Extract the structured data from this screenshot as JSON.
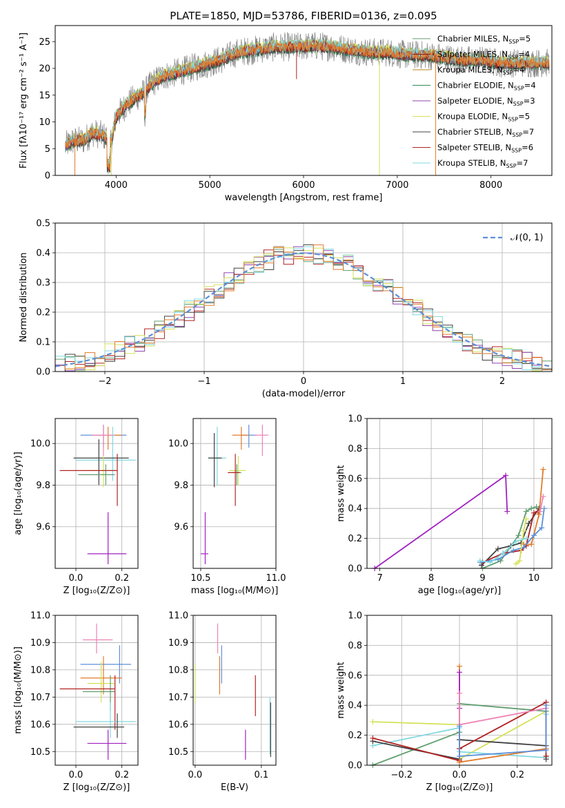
{
  "chart_data": [
    {
      "id": "spectrum",
      "type": "line",
      "title": "PLATE=1850, MJD=53786, FIBERID=0136, z=0.095",
      "xlabel": "wavelength [Angstrom, rest frame]",
      "ylabel": "Flux [fλ10⁻¹⁷ erg cm⁻² s⁻¹ A⁻¹]",
      "xlim": [
        3350,
        8650
      ],
      "ylim": [
        0,
        28
      ],
      "xticks": [
        4000,
        5000,
        6000,
        7000,
        8000
      ],
      "yticks": [
        0,
        5,
        10,
        15,
        20,
        25
      ],
      "grid": false,
      "legend_position": "top-right",
      "continuum": {
        "x": [
          3450,
          3550,
          3650,
          3750,
          3850,
          3950,
          4000,
          4100,
          4200,
          4300,
          4400,
          4500,
          4700,
          4900,
          5100,
          5300,
          5500,
          5700,
          5900,
          6100,
          6300,
          6500,
          6700,
          6900,
          7100,
          7300,
          7500,
          7700,
          7900,
          8100,
          8300
        ],
        "y": [
          5.5,
          6.5,
          6.5,
          8,
          7.5,
          6.5,
          11,
          13,
          14.5,
          15.5,
          17.5,
          18.5,
          19.5,
          20.5,
          21.5,
          23,
          23.5,
          24,
          24,
          24.2,
          24,
          23.5,
          23,
          23,
          22.5,
          22.5,
          22,
          21.5,
          21.5,
          21,
          21
        ]
      },
      "series": [
        {
          "name": "Chabrier MILES, N_SSP=5",
          "color": "#5f9e6e"
        },
        {
          "name": "Salpeter MILES, N_SSP=4",
          "color": "#8b1a1a"
        },
        {
          "name": "Kroupa MILES, N_SSP=4",
          "color": "#b8860b"
        },
        {
          "name": "Chabrier ELODIE, N_SSP=4",
          "color": "#2e8b57"
        },
        {
          "name": "Salpeter ELODIE, N_SSP=3",
          "color": "#8e44ad"
        },
        {
          "name": "Kroupa ELODIE, N_SSP=5",
          "color": "#d4e157"
        },
        {
          "name": "Chabrier STELIB, N_SSP=7",
          "color": "#404040"
        },
        {
          "name": "Salpeter STELIB, N_SSP=6",
          "color": "#b22222"
        },
        {
          "name": "Kroupa STELIB, N_SSP=7",
          "color": "#80d8e0"
        }
      ],
      "data_color": "#808080",
      "orange_color": "#e07b2a",
      "legend_labels": [
        "Chabrier MILES, N",
        "Salpeter MILES, N",
        "Kroupa MILES, N",
        "Chabrier ELODIE, N",
        "Salpeter ELODIE, N",
        "Kroupa ELODIE, N",
        "Chabrier STELIB, N",
        "Salpeter STELIB, N",
        "Kroupa STELIB, N"
      ],
      "legend_sub": "SSP",
      "legend_counts": [
        "=5",
        "=4",
        "=4",
        "=4",
        "=3",
        "=5",
        "=7",
        "=6",
        "=7"
      ]
    },
    {
      "id": "residuals",
      "type": "histogram",
      "xlabel": "(data-model)/error",
      "ylabel": "Normed distribution",
      "xlim": [
        -2.5,
        2.5
      ],
      "ylim": [
        0,
        0.5
      ],
      "xticks": [
        -2,
        -1,
        0,
        1,
        2
      ],
      "xtick_labels": [
        "−2",
        "−1",
        "0",
        "1",
        "2"
      ],
      "yticks": [
        0.0,
        0.1,
        0.2,
        0.3,
        0.4,
        0.5
      ],
      "ytick_labels": [
        "0.0",
        "0.1",
        "0.2",
        "0.3",
        "0.4",
        "0.5"
      ],
      "grid": true,
      "legend_position": "top-right",
      "legend_label": "𝒩(0, 1)",
      "reference_curve": {
        "mean": 0,
        "sigma": 1,
        "color": "#5b8fd9",
        "style": "dashed"
      },
      "bin_width": 0.1,
      "series_colors": [
        "#5f9e6e",
        "#8e44ad",
        "#b22222",
        "#d4e157",
        "#404040",
        "#80d8e0",
        "#e07b2a"
      ]
    },
    {
      "id": "age_vs_Z",
      "type": "errorbar",
      "xlabel": "Z [log₁₀(Z/Z⊙)]",
      "ylabel": "age  [log₁₀(age/yr)]",
      "xlim": [
        -0.09,
        0.27
      ],
      "ylim": [
        9.4,
        10.12
      ],
      "xticks": [
        0.0,
        0.2
      ],
      "xtick_labels": [
        "0.0",
        "0.2"
      ],
      "yticks": [
        9.6,
        9.8,
        10.0
      ],
      "ytick_labels": [
        "9.6",
        "9.8",
        "10.0"
      ],
      "grid": true,
      "points": [
        {
          "x": 0.12,
          "xlo": 0.02,
          "xhi": 0.22,
          "y": 10.04,
          "ylo": 9.98,
          "yhi": 10.09,
          "color": "#5b8fd9"
        },
        {
          "x": 0.14,
          "xlo": 0.08,
          "xhi": 0.2,
          "y": 10.04,
          "ylo": 9.97,
          "yhi": 10.08,
          "color": "#e07b2a"
        },
        {
          "x": 0.12,
          "xlo": 0.07,
          "xhi": 0.17,
          "y": 10.04,
          "ylo": 9.94,
          "yhi": 10.09,
          "color": "#ee82b4"
        },
        {
          "x": 0.16,
          "xlo": 0.0,
          "xhi": 0.26,
          "y": 9.92,
          "ylo": 9.82,
          "yhi": 10.08,
          "color": "#80d8e0"
        },
        {
          "x": 0.1,
          "xlo": -0.01,
          "xhi": 0.23,
          "y": 9.93,
          "ylo": 9.8,
          "yhi": 10.02,
          "color": "#404040"
        },
        {
          "x": 0.12,
          "xlo": 0.04,
          "xhi": 0.18,
          "y": 9.87,
          "ylo": 9.79,
          "yhi": 9.94,
          "color": "#d4e157"
        },
        {
          "x": 0.13,
          "xlo": 0.01,
          "xhi": 0.17,
          "y": 9.85,
          "ylo": 9.8,
          "yhi": 9.9,
          "color": "#5f9e6e"
        },
        {
          "x": 0.18,
          "xlo": -0.07,
          "xhi": 0.18,
          "y": 9.87,
          "ylo": 9.7,
          "yhi": 9.95,
          "color": "#b22222"
        },
        {
          "x": 0.14,
          "xlo": 0.05,
          "xhi": 0.22,
          "y": 9.47,
          "ylo": 9.42,
          "yhi": 9.67,
          "color": "#a020c0"
        }
      ]
    },
    {
      "id": "age_vs_mass",
      "type": "errorbar",
      "xlabel": "mass [log₁₀(M/M⊙)]",
      "ylabel": "",
      "xlim": [
        10.45,
        11.0
      ],
      "ylim": [
        9.4,
        10.12
      ],
      "xticks": [
        10.5,
        11.0
      ],
      "xtick_labels": [
        "10.5",
        "11.0"
      ],
      "yticks": [
        9.6,
        9.8,
        10.0
      ],
      "ytick_labels": [
        "9.6",
        "9.8",
        "10.0"
      ],
      "grid": true,
      "points": [
        {
          "x": 10.82,
          "xlo": 10.77,
          "xhi": 10.87,
          "y": 10.04,
          "ylo": 9.98,
          "yhi": 10.09,
          "color": "#5b8fd9"
        },
        {
          "x": 10.77,
          "xlo": 10.71,
          "xhi": 10.82,
          "y": 10.04,
          "ylo": 9.97,
          "yhi": 10.08,
          "color": "#e07b2a"
        },
        {
          "x": 10.91,
          "xlo": 10.86,
          "xhi": 10.95,
          "y": 10.04,
          "ylo": 9.94,
          "yhi": 10.09,
          "color": "#ee82b4"
        },
        {
          "x": 10.61,
          "xlo": 10.55,
          "xhi": 10.67,
          "y": 9.93,
          "ylo": 9.8,
          "yhi": 10.08,
          "color": "#80d8e0"
        },
        {
          "x": 10.59,
          "xlo": 10.55,
          "xhi": 10.64,
          "y": 9.93,
          "ylo": 9.79,
          "yhi": 10.05,
          "color": "#404040"
        },
        {
          "x": 10.75,
          "xlo": 10.69,
          "xhi": 10.8,
          "y": 9.87,
          "ylo": 9.8,
          "yhi": 9.94,
          "color": "#d4e157"
        },
        {
          "x": 10.74,
          "xlo": 10.71,
          "xhi": 10.77,
          "y": 9.86,
          "ylo": 9.8,
          "yhi": 9.9,
          "color": "#5f9e6e"
        },
        {
          "x": 10.73,
          "xlo": 10.68,
          "xhi": 10.76,
          "y": 9.86,
          "ylo": 9.7,
          "yhi": 9.95,
          "color": "#b22222"
        },
        {
          "x": 10.53,
          "xlo": 10.5,
          "xhi": 10.55,
          "y": 9.47,
          "ylo": 9.42,
          "yhi": 9.67,
          "color": "#a020c0"
        }
      ]
    },
    {
      "id": "weight_vs_age",
      "type": "line",
      "xlabel": "age  [log₁₀(age/yr)]",
      "ylabel": "mass weight",
      "xlim": [
        6.75,
        10.35
      ],
      "ylim": [
        0,
        1
      ],
      "xticks": [
        7,
        8,
        9,
        10
      ],
      "xtick_labels": [
        "7",
        "8",
        "9",
        "10"
      ],
      "yticks": [
        0.0,
        0.2,
        0.4,
        0.6,
        0.8,
        1.0
      ],
      "ytick_labels": [
        "0.0",
        "0.2",
        "0.4",
        "0.6",
        "0.8",
        "1.0"
      ],
      "grid": true,
      "series": [
        {
          "color": "#a020c0",
          "x": [
            6.9,
            9.45,
            9.48
          ],
          "y": [
            0.0,
            0.62,
            0.38
          ]
        },
        {
          "color": "#5f9e6e",
          "x": [
            9.0,
            9.35,
            9.7,
            9.85,
            9.95,
            10.05
          ],
          "y": [
            0.0,
            0.05,
            0.22,
            0.38,
            0.4,
            0.41
          ]
        },
        {
          "color": "#404040",
          "x": [
            8.98,
            9.3,
            9.55,
            9.75,
            9.9,
            10.1
          ],
          "y": [
            0.02,
            0.13,
            0.15,
            0.17,
            0.3,
            0.4
          ]
        },
        {
          "color": "#b22222",
          "x": [
            9.0,
            9.4,
            9.75,
            9.85,
            10.0,
            10.08
          ],
          "y": [
            0.04,
            0.1,
            0.12,
            0.15,
            0.37,
            0.38
          ]
        },
        {
          "color": "#e07b2a",
          "x": [
            9.8,
            9.95,
            10.1,
            10.18
          ],
          "y": [
            0.16,
            0.16,
            0.36,
            0.66
          ]
        },
        {
          "color": "#5b8fd9",
          "x": [
            8.95,
            9.3,
            9.6,
            9.8,
            10.0,
            10.15,
            10.2
          ],
          "y": [
            0.04,
            0.06,
            0.12,
            0.14,
            0.22,
            0.27,
            0.4
          ]
        },
        {
          "color": "#ee82b4",
          "x": [
            10.12,
            10.18
          ],
          "y": [
            0.38,
            0.48
          ]
        },
        {
          "color": "#d4e157",
          "x": [
            9.65,
            9.72,
            9.8,
            9.85
          ],
          "y": [
            0.03,
            0.05,
            0.25,
            0.33
          ]
        },
        {
          "color": "#80d8e0",
          "x": [
            8.95,
            9.15,
            9.4,
            9.65,
            9.85
          ],
          "y": [
            0.05,
            0.04,
            0.1,
            0.18,
            0.2
          ]
        }
      ]
    },
    {
      "id": "mass_vs_Z",
      "type": "errorbar",
      "xlabel": "Z [log₁₀(Z/Z⊙)]",
      "ylabel": "mass [log₁₀(M/M⊙)]",
      "xlim": [
        -0.09,
        0.27
      ],
      "ylim": [
        10.45,
        11.0
      ],
      "xticks": [
        0.0,
        0.2
      ],
      "xtick_labels": [
        "0.0",
        "0.2"
      ],
      "yticks": [
        10.5,
        10.6,
        10.7,
        10.8,
        10.9,
        11.0
      ],
      "ytick_labels": [
        "10.5",
        "10.6",
        "10.7",
        "10.8",
        "10.9",
        "11.0"
      ],
      "grid": true,
      "points": [
        {
          "x": 0.09,
          "xlo": 0.03,
          "xhi": 0.16,
          "y": 10.91,
          "ylo": 10.86,
          "yhi": 10.97,
          "color": "#ee82b4"
        },
        {
          "x": 0.19,
          "xlo": 0.02,
          "xhi": 0.24,
          "y": 10.82,
          "ylo": 10.75,
          "yhi": 10.89,
          "color": "#5b8fd9"
        },
        {
          "x": 0.12,
          "xlo": 0.02,
          "xhi": 0.2,
          "y": 10.77,
          "ylo": 10.71,
          "yhi": 10.85,
          "color": "#e07b2a"
        },
        {
          "x": 0.11,
          "xlo": 0.05,
          "xhi": 0.17,
          "y": 10.75,
          "ylo": 10.68,
          "yhi": 10.83,
          "color": "#d4e157"
        },
        {
          "x": 0.15,
          "xlo": 0.03,
          "xhi": 0.17,
          "y": 10.72,
          "ylo": 10.65,
          "yhi": 10.78,
          "color": "#5f9e6e"
        },
        {
          "x": 0.17,
          "xlo": -0.07,
          "xhi": 0.17,
          "y": 10.73,
          "ylo": 10.58,
          "yhi": 10.78,
          "color": "#b22222"
        },
        {
          "x": 0.15,
          "xlo": 0.0,
          "xhi": 0.26,
          "y": 10.61,
          "ylo": 10.55,
          "yhi": 10.68,
          "color": "#80d8e0"
        },
        {
          "x": 0.18,
          "xlo": -0.01,
          "xhi": 0.21,
          "y": 10.59,
          "ylo": 10.55,
          "yhi": 10.64,
          "color": "#404040"
        },
        {
          "x": 0.14,
          "xlo": 0.05,
          "xhi": 0.22,
          "y": 10.53,
          "ylo": 10.47,
          "yhi": 10.58,
          "color": "#a020c0"
        }
      ]
    },
    {
      "id": "mass_vs_ebv",
      "type": "errorbar",
      "xlabel": "E(B-V)",
      "ylabel": "",
      "xlim": [
        -0.003,
        0.122
      ],
      "ylim": [
        10.45,
        11.0
      ],
      "xticks": [
        0.0,
        0.1
      ],
      "xtick_labels": [
        "0.0",
        "0.1"
      ],
      "yticks": [
        10.5,
        10.6,
        10.7,
        10.8,
        10.9,
        11.0
      ],
      "ytick_labels": [
        "10.5",
        "10.6",
        "10.7",
        "10.8",
        "10.9",
        "11.0"
      ],
      "grid": true,
      "points": [
        {
          "x": 0.034,
          "ylo": 10.86,
          "yhi": 10.97,
          "color": "#ee82b4"
        },
        {
          "x": 0.04,
          "ylo": 10.75,
          "yhi": 10.89,
          "color": "#5b8fd9"
        },
        {
          "x": 0.037,
          "ylo": 10.71,
          "yhi": 10.85,
          "color": "#e07b2a"
        },
        {
          "x": 0.0,
          "ylo": 10.68,
          "yhi": 10.82,
          "color": "#d4e157"
        },
        {
          "x": 0.076,
          "ylo": 10.47,
          "yhi": 10.58,
          "color": "#a020c0"
        },
        {
          "x": 0.091,
          "ylo": 10.63,
          "yhi": 10.78,
          "color": "#b22222"
        },
        {
          "x": 0.113,
          "ylo": 10.49,
          "yhi": 10.7,
          "color": "#80d8e0"
        },
        {
          "x": 0.114,
          "ylo": 10.48,
          "yhi": 10.68,
          "color": "#404040"
        }
      ]
    },
    {
      "id": "weight_vs_Z",
      "type": "line",
      "xlabel": "Z [log₁₀(Z/Z⊙)]",
      "ylabel": "mass weight",
      "xlim": [
        -0.32,
        0.32
      ],
      "ylim": [
        0,
        1
      ],
      "xticks": [
        -0.2,
        0.0,
        0.2
      ],
      "xtick_labels": [
        "−0.2",
        "0.0",
        "0.2"
      ],
      "yticks": [
        0.0,
        0.2,
        0.4,
        0.6,
        0.8,
        1.0
      ],
      "ytick_labels": [
        "0.0",
        "0.2",
        "0.4",
        "0.6",
        "0.8",
        "1.0"
      ],
      "grid": true,
      "series": [
        {
          "color": "#d4e157",
          "x": [
            -0.3,
            0.0,
            0.0,
            0.3
          ],
          "y": [
            0.29,
            0.27,
            0.04,
            0.36
          ]
        },
        {
          "color": "#80d8e0",
          "x": [
            -0.3,
            0.0,
            0.0,
            0.3,
            0.3
          ],
          "y": [
            0.13,
            0.25,
            0.09,
            0.05,
            0.34
          ]
        },
        {
          "color": "#5f9e6e",
          "x": [
            -0.3,
            0.0,
            0.0,
            0.3,
            0.3
          ],
          "y": [
            0.0,
            0.22,
            0.41,
            0.36,
            0.06
          ]
        },
        {
          "color": "#404040",
          "x": [
            -0.3,
            0.0,
            0.0,
            0.3,
            0.3
          ],
          "y": [
            0.16,
            0.04,
            0.17,
            0.13,
            0.04
          ]
        },
        {
          "color": "#b22222",
          "x": [
            -0.3,
            0.0,
            0.0,
            0.3,
            0.3
          ],
          "y": [
            0.18,
            0.03,
            0.11,
            0.42,
            0.06
          ]
        },
        {
          "color": "#e07b2a",
          "x": [
            0.0,
            0.0,
            0.3
          ],
          "y": [
            0.66,
            0.02,
            0.11
          ]
        },
        {
          "color": "#a020c0",
          "x": [
            0.0,
            0.0
          ],
          "y": [
            0.62,
            0.38
          ]
        },
        {
          "color": "#ee82b4",
          "x": [
            0.0,
            0.0,
            0.3
          ],
          "y": [
            0.48,
            0.27,
            0.38
          ]
        },
        {
          "color": "#5b8fd9",
          "x": [
            0.0,
            0.0,
            0.3,
            0.3
          ],
          "y": [
            0.26,
            0.06,
            0.1,
            0.4
          ]
        }
      ]
    }
  ]
}
